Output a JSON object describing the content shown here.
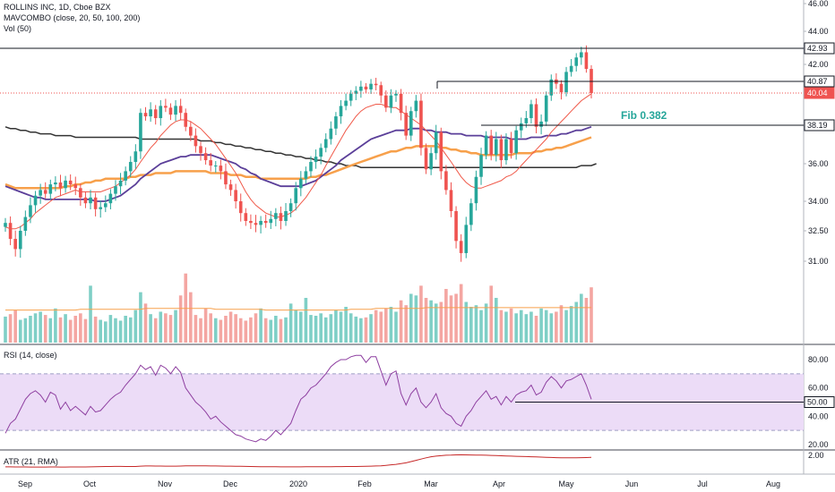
{
  "header": {
    "title": "ROLLINS INC, 1D, Cboe BZX",
    "indicator": "MAVCOMBO (close, 20, 50, 100, 200)",
    "volume": "Vol (50)"
  },
  "colors": {
    "up": "#26a69a",
    "down": "#ef5350",
    "vol_up": "#7fcfc6",
    "vol_down": "#f4a6a2",
    "ma20": "#f05a4a",
    "ma50": "#5b3f99",
    "ma100": "#f7a04b",
    "ma200": "#333333",
    "rsi": "#8e3fa0",
    "rsi_band": "#ecdcf7",
    "atr": "#c62828",
    "price_tag": "#ef5350"
  },
  "chart_data": [
    {
      "type": "candlestick",
      "ylim": [
        31.0,
        46.0
      ],
      "y_ticks": [
        31.0,
        32.5,
        34.0,
        36.0,
        38.19,
        40.04,
        40.87,
        42.0,
        42.93,
        44.0,
        46.0
      ],
      "x_labels": [
        "Sep",
        "Oct",
        "Nov",
        "Dec",
        "2020",
        "Feb",
        "Mar",
        "Apr",
        "May",
        "Jun",
        "Jul",
        "Aug"
      ],
      "last_price": 40.04,
      "horizontal_levels": [
        42.93,
        40.87,
        38.19
      ],
      "annotation": "Fib 0.382",
      "close": [
        32.9,
        32.1,
        31.6,
        32.5,
        33.2,
        33.8,
        34.3,
        34.6,
        34.4,
        34.9,
        35.0,
        34.7,
        35.1,
        34.9,
        34.7,
        34.2,
        33.9,
        34.2,
        33.6,
        33.7,
        33.9,
        34.4,
        34.8,
        35.1,
        35.6,
        36.1,
        36.7,
        38.9,
        38.7,
        39.1,
        38.6,
        39.3,
        39.2,
        38.8,
        39.3,
        38.9,
        38.1,
        37.6,
        37.0,
        36.6,
        36.2,
        35.9,
        35.9,
        35.6,
        34.9,
        34.6,
        34.0,
        33.4,
        33.0,
        32.9,
        32.8,
        33.0,
        32.9,
        33.1,
        33.4,
        33.0,
        33.5,
        33.9,
        34.7,
        35.2,
        35.6,
        36.1,
        36.4,
        36.9,
        37.4,
        38.0,
        38.7,
        39.3,
        39.6,
        40.0,
        40.2,
        40.5,
        40.3,
        40.7,
        40.6,
        39.9,
        39.2,
        39.9,
        40.0,
        38.9,
        37.6,
        39.0,
        39.6,
        36.9,
        35.7,
        36.6,
        37.8,
        35.6,
        34.6,
        33.5,
        32.0,
        31.4,
        32.8,
        33.9,
        35.3,
        36.5,
        37.6,
        36.5,
        37.4,
        36.2,
        37.4,
        36.6,
        37.9,
        38.3,
        38.6,
        39.4,
        38.1,
        38.4,
        39.9,
        41.0,
        40.7,
        40.1,
        41.5,
        41.9,
        42.4,
        42.7,
        41.7,
        40.04
      ],
      "ma20": [
        32.7,
        32.6,
        32.6,
        32.7,
        32.9,
        33.1,
        33.4,
        33.6,
        33.8,
        34.0,
        34.2,
        34.3,
        34.4,
        34.5,
        34.6,
        34.5,
        34.5,
        34.5,
        34.5,
        34.5,
        34.6,
        34.7,
        34.8,
        35.0,
        35.2,
        35.4,
        35.7,
        36.1,
        36.5,
        36.9,
        37.2,
        37.6,
        37.9,
        38.2,
        38.4,
        38.5,
        38.5,
        38.4,
        38.2,
        38.0,
        37.7,
        37.4,
        37.1,
        36.7,
        36.3,
        35.9,
        35.5,
        35.0,
        34.5,
        34.1,
        33.8,
        33.6,
        33.4,
        33.3,
        33.2,
        33.2,
        33.3,
        33.4,
        33.6,
        33.9,
        34.2,
        34.6,
        35.0,
        35.4,
        35.9,
        36.4,
        36.9,
        37.4,
        37.9,
        38.3,
        38.7,
        39.0,
        39.2,
        39.3,
        39.4,
        39.4,
        39.3,
        39.2,
        39.2,
        39.0,
        38.8,
        38.6,
        38.4,
        38.2,
        37.9,
        37.6,
        37.3,
        36.9,
        36.5,
        36.1,
        35.7,
        35.3,
        35.0,
        34.8,
        34.7,
        34.7,
        34.8,
        34.9,
        35.0,
        35.1,
        35.3,
        35.4,
        35.6,
        35.9,
        36.2,
        36.5,
        36.8,
        37.1,
        37.4,
        37.8,
        38.1,
        38.4,
        38.7,
        39.0,
        39.3,
        39.6,
        39.8,
        40.0
      ],
      "ma50": [
        34.8,
        34.7,
        34.6,
        34.5,
        34.4,
        34.3,
        34.2,
        34.2,
        34.1,
        34.1,
        34.1,
        34.1,
        34.1,
        34.1,
        34.1,
        34.1,
        34.1,
        34.1,
        34.0,
        34.0,
        34.0,
        34.1,
        34.2,
        34.3,
        34.5,
        34.7,
        34.9,
        35.2,
        35.4,
        35.6,
        35.8,
        36.0,
        36.1,
        36.2,
        36.3,
        36.4,
        36.4,
        36.5,
        36.5,
        36.5,
        36.5,
        36.5,
        36.4,
        36.3,
        36.2,
        36.1,
        36.0,
        35.8,
        35.7,
        35.5,
        35.4,
        35.2,
        35.1,
        35.0,
        34.9,
        34.8,
        34.8,
        34.8,
        34.8,
        34.8,
        34.9,
        35.0,
        35.1,
        35.3,
        35.5,
        35.7,
        35.9,
        36.2,
        36.4,
        36.6,
        36.8,
        37.0,
        37.2,
        37.4,
        37.5,
        37.6,
        37.7,
        37.8,
        37.9,
        37.9,
        37.9,
        38.0,
        38.0,
        38.0,
        37.9,
        37.9,
        37.8,
        37.8,
        37.8,
        37.7,
        37.7,
        37.7,
        37.6,
        37.6,
        37.6,
        37.6,
        37.5,
        37.5,
        37.5,
        37.5,
        37.5,
        37.4,
        37.4,
        37.4,
        37.4,
        37.5,
        37.5,
        37.5,
        37.6,
        37.6,
        37.6,
        37.7,
        37.7,
        37.8,
        37.9,
        37.9,
        38.0,
        38.1
      ],
      "ma100": [
        34.9,
        34.8,
        34.7,
        34.7,
        34.7,
        34.7,
        34.7,
        34.7,
        34.7,
        34.7,
        34.7,
        34.7,
        34.8,
        34.8,
        34.9,
        34.9,
        35.0,
        35.0,
        35.1,
        35.1,
        35.2,
        35.2,
        35.2,
        35.2,
        35.2,
        35.3,
        35.3,
        35.4,
        35.4,
        35.4,
        35.5,
        35.5,
        35.5,
        35.5,
        35.6,
        35.6,
        35.6,
        35.6,
        35.6,
        35.6,
        35.6,
        35.5,
        35.5,
        35.5,
        35.5,
        35.4,
        35.4,
        35.4,
        35.3,
        35.3,
        35.3,
        35.2,
        35.2,
        35.2,
        35.2,
        35.2,
        35.2,
        35.2,
        35.2,
        35.2,
        35.2,
        35.3,
        35.3,
        35.4,
        35.4,
        35.5,
        35.6,
        35.7,
        35.8,
        35.9,
        36.0,
        36.1,
        36.2,
        36.3,
        36.4,
        36.5,
        36.6,
        36.7,
        36.7,
        36.8,
        36.9,
        36.9,
        37.0,
        37.0,
        37.0,
        37.0,
        37.0,
        36.9,
        36.9,
        36.8,
        36.8,
        36.7,
        36.7,
        36.6,
        36.6,
        36.5,
        36.5,
        36.5,
        36.5,
        36.5,
        36.5,
        36.5,
        36.6,
        36.6,
        36.6,
        36.6,
        36.7,
        36.7,
        36.8,
        36.8,
        36.9,
        36.9,
        37.0,
        37.1,
        37.2,
        37.3,
        37.4,
        37.5
      ],
      "ma200": [
        38.1,
        38.0,
        38.0,
        37.9,
        37.9,
        37.8,
        37.8,
        37.7,
        37.7,
        37.7,
        37.6,
        37.6,
        37.6,
        37.6,
        37.5,
        37.5,
        37.5,
        37.5,
        37.5,
        37.5,
        37.5,
        37.5,
        37.5,
        37.5,
        37.5,
        37.5,
        37.5,
        37.4,
        37.4,
        37.4,
        37.4,
        37.4,
        37.4,
        37.4,
        37.4,
        37.4,
        37.4,
        37.4,
        37.4,
        37.3,
        37.3,
        37.3,
        37.2,
        37.2,
        37.1,
        37.1,
        37.0,
        37.0,
        36.9,
        36.9,
        36.8,
        36.8,
        36.7,
        36.7,
        36.6,
        36.6,
        36.5,
        36.5,
        36.4,
        36.4,
        36.3,
        36.3,
        36.2,
        36.2,
        36.1,
        36.1,
        36.0,
        36.0,
        35.9,
        35.9,
        35.9,
        35.8,
        35.8,
        35.8,
        35.8,
        35.8,
        35.8,
        35.8,
        35.8,
        35.8,
        35.8,
        35.8,
        35.8,
        35.8,
        35.8,
        35.8,
        35.8,
        35.8,
        35.8,
        35.8,
        35.8,
        35.8,
        35.8,
        35.8,
        35.8,
        35.8,
        35.8,
        35.8,
        35.8,
        35.8,
        35.8,
        35.8,
        35.8,
        35.8,
        35.8,
        35.8,
        35.8,
        35.8,
        35.8,
        35.8,
        35.8,
        35.8,
        35.8,
        35.8,
        35.8,
        35.9,
        35.9,
        35.9,
        36.0
      ],
      "volume": [
        32,
        35,
        40,
        28,
        30,
        33,
        36,
        38,
        34,
        30,
        42,
        31,
        35,
        28,
        33,
        36,
        29,
        70,
        32,
        28,
        26,
        34,
        30,
        27,
        33,
        31,
        40,
        62,
        48,
        35,
        30,
        38,
        36,
        34,
        40,
        58,
        85,
        62,
        34,
        30,
        42,
        36,
        30,
        28,
        33,
        38,
        35,
        30,
        27,
        31,
        36,
        42,
        30,
        28,
        33,
        29,
        31,
        48,
        40,
        38,
        55,
        34,
        33,
        36,
        31,
        35,
        40,
        38,
        44,
        36,
        32,
        30,
        31,
        35,
        40,
        38,
        42,
        44,
        38,
        52,
        46,
        60,
        58,
        70,
        55,
        52,
        48,
        50,
        66,
        58,
        60,
        72,
        50,
        44,
        46,
        40,
        48,
        70,
        55,
        40,
        38,
        42,
        36,
        40,
        35,
        38,
        33,
        42,
        40,
        36,
        38,
        46,
        40,
        45,
        50,
        60,
        55,
        68
      ],
      "vol_ma": [
        40,
        40,
        40,
        40,
        40,
        40,
        40,
        40,
        40,
        40,
        40,
        40,
        40,
        40,
        40,
        41,
        41,
        41,
        41,
        41,
        41,
        41,
        41,
        41,
        41,
        41,
        41,
        41,
        42,
        42,
        42,
        42,
        42,
        42,
        42,
        42,
        42,
        42,
        42,
        42,
        42,
        42,
        41,
        41,
        41,
        41,
        41,
        41,
        41,
        41,
        41,
        41,
        40,
        40,
        40,
        40,
        40,
        40,
        40,
        40,
        40,
        40,
        40,
        40,
        40,
        40,
        40,
        40,
        40,
        41,
        41,
        41,
        41,
        41,
        42,
        42,
        42,
        42,
        42,
        42,
        42,
        42,
        42,
        42,
        43,
        43,
        43,
        43,
        43,
        43,
        43,
        43,
        43,
        43,
        43,
        43,
        43,
        43,
        43,
        43,
        43,
        43,
        43,
        43,
        43,
        43,
        43,
        43,
        43,
        43,
        43,
        43,
        43,
        43,
        43,
        43,
        43,
        43
      ]
    },
    {
      "type": "line",
      "title": "RSI (14, close)",
      "ylim": [
        15,
        90
      ],
      "y_ticks": [
        20.0,
        40.0,
        50.0,
        60.0,
        80.0
      ],
      "band": [
        30,
        70
      ],
      "level": 50.0,
      "values": [
        28,
        35,
        38,
        45,
        52,
        56,
        58,
        55,
        50,
        57,
        55,
        45,
        50,
        44,
        47,
        44,
        41,
        47,
        43,
        44,
        48,
        52,
        55,
        57,
        62,
        66,
        70,
        76,
        73,
        75,
        69,
        76,
        74,
        70,
        75,
        71,
        60,
        55,
        50,
        47,
        43,
        38,
        40,
        36,
        33,
        30,
        27,
        26,
        24,
        23,
        22,
        24,
        23,
        26,
        30,
        27,
        31,
        35,
        44,
        52,
        55,
        60,
        62,
        66,
        70,
        75,
        78,
        80,
        80,
        82,
        83,
        83,
        78,
        82,
        82,
        72,
        62,
        70,
        72,
        56,
        48,
        56,
        60,
        50,
        46,
        50,
        56,
        46,
        42,
        40,
        35,
        33,
        40,
        44,
        50,
        54,
        58,
        52,
        54,
        48,
        54,
        50,
        55,
        57,
        58,
        62,
        55,
        57,
        64,
        68,
        65,
        60,
        65,
        66,
        68,
        70,
        62,
        52
      ]
    },
    {
      "type": "line",
      "title": "ATR (21, RMA)",
      "y_ticks": [
        2.0
      ],
      "values": [
        0.62,
        0.62,
        0.61,
        0.61,
        0.61,
        0.6,
        0.6,
        0.6,
        0.6,
        0.61,
        0.61,
        0.6,
        0.6,
        0.61,
        0.61,
        0.61,
        0.61,
        0.62,
        0.64,
        0.65,
        0.66,
        0.66,
        0.67,
        0.67,
        0.66,
        0.66,
        0.66,
        0.7,
        0.72,
        0.72,
        0.71,
        0.71,
        0.7,
        0.7,
        0.7,
        0.71,
        0.73,
        0.75,
        0.74,
        0.74,
        0.73,
        0.72,
        0.72,
        0.71,
        0.7,
        0.7,
        0.69,
        0.68,
        0.67,
        0.66,
        0.65,
        0.64,
        0.64,
        0.63,
        0.63,
        0.62,
        0.62,
        0.62,
        0.62,
        0.62,
        0.63,
        0.63,
        0.63,
        0.64,
        0.64,
        0.64,
        0.65,
        0.65,
        0.66,
        0.66,
        0.66,
        0.67,
        0.68,
        0.7,
        0.72,
        0.75,
        0.8,
        0.86,
        0.92,
        1.0,
        1.1,
        1.25,
        1.4,
        1.55,
        1.7,
        1.82,
        1.9,
        1.95,
        2.0,
        2.02,
        2.05,
        2.06,
        2.05,
        2.04,
        2.03,
        2.02,
        2.0,
        1.98,
        1.96,
        1.94,
        1.92,
        1.9,
        1.88,
        1.86,
        1.84,
        1.82,
        1.8,
        1.78,
        1.76,
        1.74,
        1.72,
        1.71,
        1.7,
        1.7,
        1.71,
        1.72,
        1.73,
        1.75
      ]
    }
  ]
}
